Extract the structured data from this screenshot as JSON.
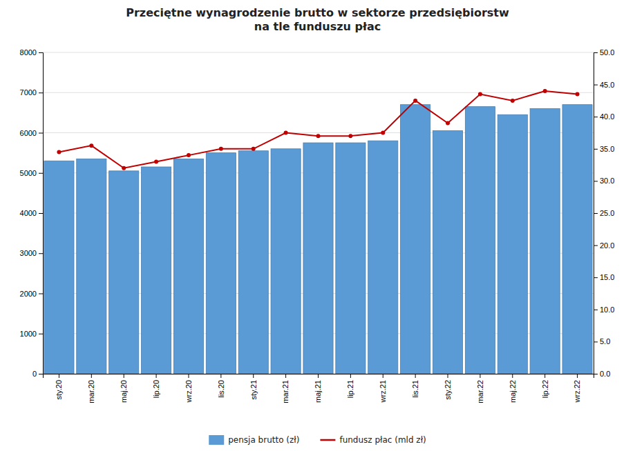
{
  "chart_data": {
    "type": "bar",
    "title": "Przeciętne wynagrodzenie brutto w sektorze przedsiębiorstw\nna tle funduszu płac",
    "categories": [
      "sty.20",
      "mar.20",
      "maj.20",
      "lip.20",
      "wrz.20",
      "lis.20",
      "sty.21",
      "mar.21",
      "maj.21",
      "lip.21",
      "wrz.21",
      "lis.21",
      "sty.22",
      "mar.22",
      "maj.22",
      "lip.22",
      "wrz.22"
    ],
    "series": [
      {
        "name": "pensja brutto (zł)",
        "type": "bar",
        "color": "#5b9bd5",
        "values": [
          5300,
          5350,
          5050,
          5150,
          5350,
          5500,
          5550,
          5600,
          5750,
          5750,
          5800,
          6700,
          6050,
          6650,
          6450,
          6600,
          6700
        ]
      },
      {
        "name": "fundusz płac (mld zł)",
        "type": "line",
        "color": "#c00000",
        "axis": "y2",
        "marker": "circle",
        "values": [
          34.5,
          35.5,
          32.0,
          33.0,
          34.0,
          35.0,
          35.0,
          37.5,
          37.0,
          37.0,
          37.5,
          42.5,
          39.0,
          43.5,
          42.5,
          44.0,
          43.5
        ]
      }
    ],
    "ylim": [
      0,
      8000
    ],
    "yticks": [
      0,
      1000,
      2000,
      3000,
      4000,
      5000,
      6000,
      7000,
      8000
    ],
    "y2lim": [
      0,
      50.0
    ],
    "y2ticks": [
      {
        "value": 0.0,
        "label": "0.0"
      },
      {
        "value": 5.0,
        "label": "5.0"
      },
      {
        "value": 10.0,
        "label": "10.0"
      },
      {
        "value": 15.0,
        "label": "15.0"
      },
      {
        "value": 20.0,
        "label": "20.0"
      },
      {
        "value": 25.0,
        "label": "25.0"
      },
      {
        "value": 30.0,
        "label": "30.0"
      },
      {
        "value": 35.0,
        "label": "35.0"
      },
      {
        "value": 40.0,
        "label": "40.0"
      },
      {
        "value": 45.0,
        "label": "45.0"
      },
      {
        "value": 50.0,
        "label": "50.0"
      }
    ],
    "grid": true,
    "legend": "bottom"
  }
}
